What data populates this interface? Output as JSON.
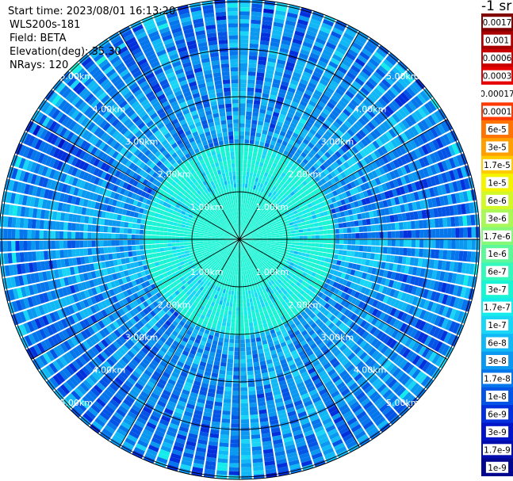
{
  "info": {
    "start_time": "Start time: 2023/08/01 16:13:20",
    "instrument": "WLS200s-181",
    "field": "Field: BETA",
    "elevation": "Elevation(deg): 35.30",
    "nrays": "NRays: 120"
  },
  "colorbar": {
    "units_label": "-1 sr",
    "levels": [
      {
        "label": "0.0017",
        "color": "#800000"
      },
      {
        "label": "0.001",
        "color": "#a80000"
      },
      {
        "label": "0.0006",
        "color": "#c80000"
      },
      {
        "label": "0.0003",
        "color": "#e60000"
      },
      {
        "label": "0.00017",
        "color": "#ffffff"
      },
      {
        "label": "0.0001",
        "color": "#ff3a00"
      },
      {
        "label": "6e-5",
        "color": "#ff7400"
      },
      {
        "label": "3e-5",
        "color": "#ffa000"
      },
      {
        "label": "1.7e-5",
        "color": "#ffcc00"
      },
      {
        "label": "1e-5",
        "color": "#f4f400"
      },
      {
        "label": "6e-6",
        "color": "#d2f82a"
      },
      {
        "label": "3e-6",
        "color": "#aaf858"
      },
      {
        "label": "1.7e-6",
        "color": "#86fa78"
      },
      {
        "label": "1e-6",
        "color": "#5ef89a"
      },
      {
        "label": "6e-7",
        "color": "#34f8bc"
      },
      {
        "label": "3e-7",
        "color": "#18f4d4"
      },
      {
        "label": "1.7e-7",
        "color": "#14ecec"
      },
      {
        "label": "1e-7",
        "color": "#1ad6f6"
      },
      {
        "label": "6e-8",
        "color": "#10b8f6"
      },
      {
        "label": "3e-8",
        "color": "#0a98f0"
      },
      {
        "label": "1.7e-8",
        "color": "#0676ec"
      },
      {
        "label": "1e-8",
        "color": "#0454e6"
      },
      {
        "label": "6e-9",
        "color": "#0230dc"
      },
      {
        "label": "3e-9",
        "color": "#0014c8"
      },
      {
        "label": "1.7e-9",
        "color": "#000cae"
      },
      {
        "label": "1e-9",
        "color": "#00068e"
      }
    ]
  },
  "chart_data": {
    "type": "heatmap",
    "subtype": "radar-ppi",
    "field": "BETA",
    "units": "sr-1",
    "elevation_deg": 35.3,
    "n_rays": 120,
    "range_rings": [
      {
        "range_km": 1,
        "label": "1.00km"
      },
      {
        "range_km": 2,
        "label": "2.00km"
      },
      {
        "range_km": 3,
        "label": "3.00km"
      },
      {
        "range_km": 4,
        "label": "4.00km"
      },
      {
        "range_km": 5,
        "label": "5.00km"
      }
    ],
    "max_range_km": 5.05,
    "spokes_every_deg": 30,
    "value_range": [
      "1e-9",
      "0.0017"
    ],
    "dominant_values": [
      "1e-8",
      "1.7e-7"
    ],
    "near_range_values": [
      "1e-7",
      "1e-6"
    ],
    "grid": true,
    "legend": "right colorbar"
  }
}
